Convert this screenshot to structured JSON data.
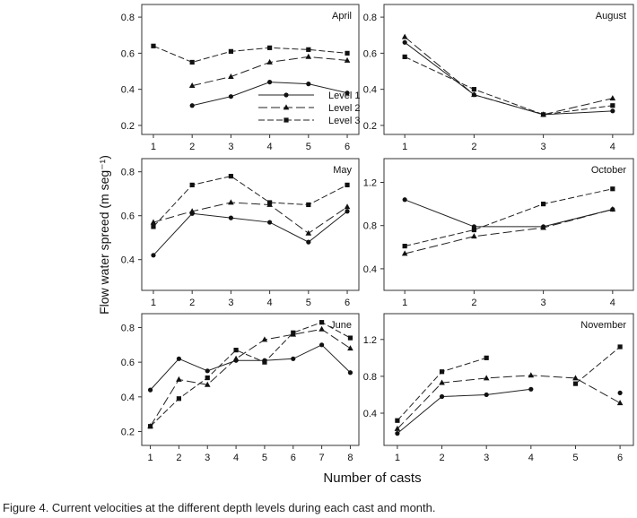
{
  "figure": {
    "ylabel": "Flow water spreed (m seg⁻¹)",
    "xlabel": "Number of casts",
    "caption": "Figure 4. Current velocities at the different depth levels during each cast and month.",
    "legend": [
      "Level 1",
      "Level 2",
      "Level 3"
    ]
  },
  "chart_data": [
    {
      "type": "line",
      "title": "April",
      "legend_position": "bottom-right",
      "show_legend": true,
      "x_ticks": [
        1,
        2,
        3,
        4,
        5,
        6
      ],
      "xlim": [
        0.7,
        6.3
      ],
      "y_ticks": [
        0.2,
        0.4,
        0.6,
        0.8
      ],
      "y_tick_labels": [
        "0.2",
        "0.4",
        "0.6",
        "0.8"
      ],
      "ylim": [
        0.15,
        0.87
      ],
      "series": [
        {
          "name": "Level 1",
          "x": [
            2,
            3,
            4,
            5,
            6
          ],
          "values": [
            0.31,
            0.36,
            0.44,
            0.43,
            0.38
          ]
        },
        {
          "name": "Level 2",
          "x": [
            2,
            3,
            4,
            5,
            6
          ],
          "values": [
            0.42,
            0.47,
            0.55,
            0.58,
            0.56
          ]
        },
        {
          "name": "Level 3",
          "x": [
            1,
            2,
            3,
            4,
            5,
            6
          ],
          "values": [
            0.64,
            0.55,
            0.61,
            0.63,
            0.62,
            0.6
          ]
        }
      ]
    },
    {
      "type": "line",
      "title": "August",
      "show_legend": false,
      "x_ticks": [
        1,
        2,
        3,
        4
      ],
      "xlim": [
        0.7,
        4.3
      ],
      "y_ticks": [
        0.2,
        0.4,
        0.6,
        0.8
      ],
      "y_tick_labels": [
        "0.2",
        "0.4",
        "0.6",
        "0.8"
      ],
      "ylim": [
        0.15,
        0.87
      ],
      "series": [
        {
          "name": "Level 1",
          "x": [
            1,
            2,
            3,
            4
          ],
          "values": [
            0.66,
            0.37,
            0.26,
            0.28
          ]
        },
        {
          "name": "Level 2",
          "x": [
            1,
            2,
            3,
            4
          ],
          "values": [
            0.69,
            0.37,
            0.26,
            0.35
          ]
        },
        {
          "name": "Level 3",
          "x": [
            1,
            2,
            3,
            4
          ],
          "values": [
            0.58,
            0.4,
            0.26,
            0.31
          ]
        }
      ]
    },
    {
      "type": "line",
      "title": "May",
      "show_legend": false,
      "x_ticks": [
        1,
        2,
        3,
        4,
        5,
        6
      ],
      "xlim": [
        0.7,
        6.3
      ],
      "y_ticks": [
        0.4,
        0.6,
        0.8
      ],
      "y_tick_labels": [
        "0.4",
        "0.6",
        "0.8"
      ],
      "ylim": [
        0.26,
        0.86
      ],
      "series": [
        {
          "name": "Level 1",
          "x": [
            1,
            2,
            3,
            4,
            5,
            6
          ],
          "values": [
            0.42,
            0.61,
            0.59,
            0.57,
            0.48,
            0.62
          ]
        },
        {
          "name": "Level 2",
          "x": [
            1,
            2,
            3,
            4,
            5,
            6
          ],
          "values": [
            0.57,
            0.62,
            0.66,
            0.65,
            0.52,
            0.64
          ]
        },
        {
          "name": "Level 3",
          "x": [
            1,
            2,
            3,
            4,
            5,
            6
          ],
          "values": [
            0.55,
            0.74,
            0.78,
            0.66,
            0.65,
            0.74
          ]
        }
      ]
    },
    {
      "type": "line",
      "title": "October",
      "show_legend": false,
      "x_ticks": [
        1,
        2,
        3,
        4
      ],
      "xlim": [
        0.7,
        4.3
      ],
      "y_ticks": [
        0.4,
        0.8,
        1.2
      ],
      "y_tick_labels": [
        "0.4",
        "0.8",
        "1.2"
      ],
      "ylim": [
        0.2,
        1.42
      ],
      "series": [
        {
          "name": "Level 1",
          "x": [
            1,
            2,
            3,
            4
          ],
          "values": [
            1.04,
            0.79,
            0.79,
            0.95
          ]
        },
        {
          "name": "Level 2",
          "x": [
            1,
            2,
            3,
            4
          ],
          "values": [
            0.54,
            0.7,
            0.78,
            0.95
          ]
        },
        {
          "name": "Level 3",
          "x": [
            1,
            2,
            3,
            4
          ],
          "values": [
            0.61,
            0.76,
            1.0,
            1.14
          ]
        }
      ]
    },
    {
      "type": "line",
      "title": "June",
      "show_legend": false,
      "x_ticks": [
        1,
        2,
        3,
        4,
        5,
        6,
        7,
        8
      ],
      "xlim": [
        0.7,
        8.3
      ],
      "y_ticks": [
        0.2,
        0.4,
        0.6,
        0.8
      ],
      "y_tick_labels": [
        "0.2",
        "0.4",
        "0.6",
        "0.8"
      ],
      "ylim": [
        0.12,
        0.88
      ],
      "series": [
        {
          "name": "Level 1",
          "x": [
            1,
            2,
            3,
            4,
            5,
            6,
            7,
            8
          ],
          "values": [
            0.44,
            0.62,
            0.55,
            0.61,
            0.61,
            0.62,
            0.7,
            0.54
          ]
        },
        {
          "name": "Level 2",
          "x": [
            1,
            2,
            3,
            4,
            5,
            6,
            7,
            8
          ],
          "values": [
            0.23,
            0.5,
            0.47,
            0.62,
            0.73,
            0.76,
            0.79,
            0.68
          ]
        },
        {
          "name": "Level 3",
          "x": [
            1,
            2,
            3,
            4,
            5,
            6,
            7,
            8
          ],
          "values": [
            0.23,
            0.39,
            0.51,
            0.67,
            0.6,
            0.77,
            0.83,
            0.74
          ]
        }
      ]
    },
    {
      "type": "line",
      "title": "November",
      "show_legend": false,
      "x_ticks": [
        1,
        2,
        3,
        4,
        5,
        6
      ],
      "xlim": [
        0.7,
        6.3
      ],
      "y_ticks": [
        0.4,
        0.8,
        1.2
      ],
      "y_tick_labels": [
        "0.4",
        "0.8",
        "1.2"
      ],
      "ylim": [
        0.05,
        1.48
      ],
      "series": [
        {
          "name": "Level 1",
          "x": [
            1,
            2,
            3,
            4
          ],
          "values": [
            0.18,
            0.58,
            0.6,
            0.66
          ]
        },
        {
          "name": "Level 2",
          "x": [
            1,
            2,
            3,
            4,
            5,
            6
          ],
          "values": [
            0.23,
            0.73,
            0.78,
            0.81,
            0.78,
            0.51
          ]
        },
        {
          "name": "Level 3",
          "x": [
            1,
            2,
            3
          ],
          "values": [
            0.32,
            0.85,
            1.0
          ]
        }
      ],
      "extra_points": [
        {
          "name": "Level 1",
          "x": 6,
          "value": 0.62
        },
        {
          "name": "Level 3",
          "x": 5,
          "value": 0.72
        },
        {
          "name": "Level 3",
          "x": 6,
          "value": 1.12
        }
      ],
      "extra_segments": [
        {
          "name": "Level 3",
          "x": [
            5,
            6
          ],
          "values": [
            0.72,
            1.12
          ]
        }
      ]
    }
  ]
}
